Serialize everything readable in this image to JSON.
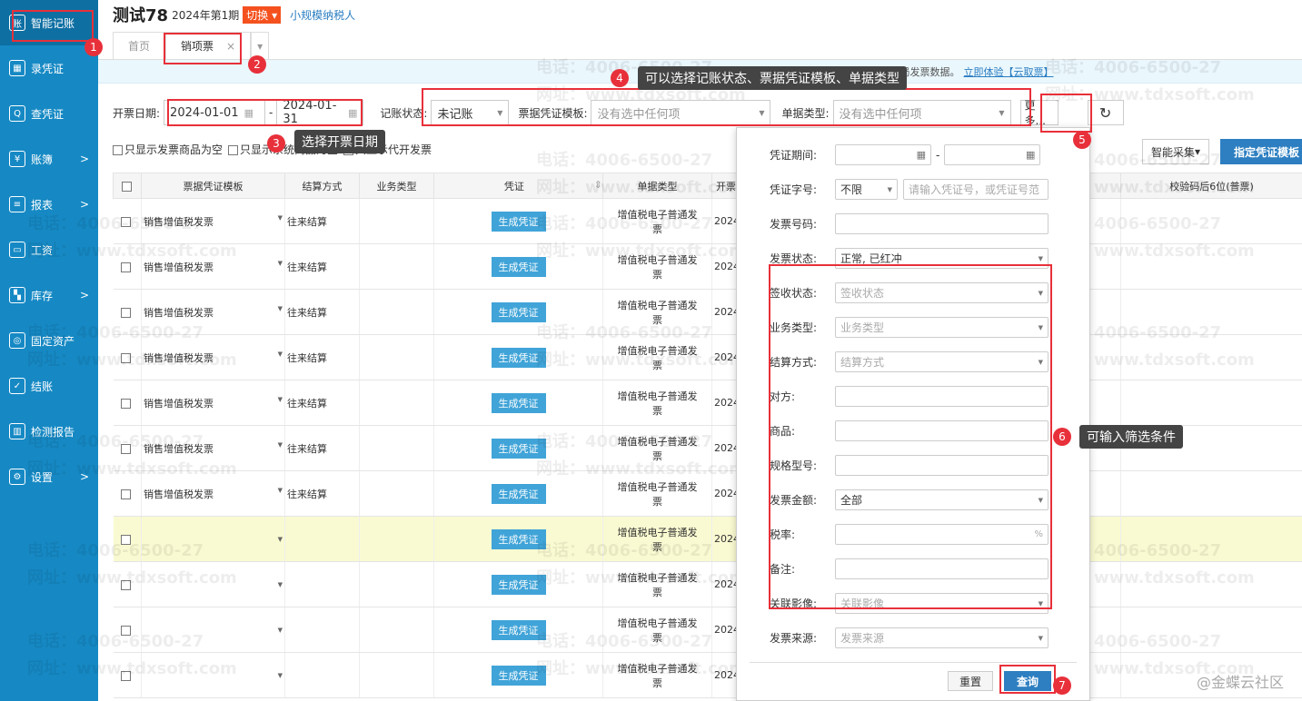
{
  "sidebar": {
    "items": [
      {
        "label": "智能记账",
        "icon": "smart-book-icon",
        "arrow": false
      },
      {
        "label": "录凭证",
        "icon": "calculator-icon",
        "arrow": false
      },
      {
        "label": "查凭证",
        "icon": "search-icon",
        "arrow": false
      },
      {
        "label": "账簿",
        "icon": "yen-icon",
        "arrow": true
      },
      {
        "label": "报表",
        "icon": "report-icon",
        "arrow": true
      },
      {
        "label": "工资",
        "icon": "salary-icon",
        "arrow": false
      },
      {
        "label": "库存",
        "icon": "grid-icon",
        "arrow": true
      },
      {
        "label": "固定资产",
        "icon": "asset-icon",
        "arrow": false
      },
      {
        "label": "结账",
        "icon": "check-icon",
        "arrow": false
      },
      {
        "label": "检测报告",
        "icon": "chart-icon",
        "arrow": false
      },
      {
        "label": "设置",
        "icon": "gear-icon",
        "arrow": true
      }
    ]
  },
  "header": {
    "title": "测试78",
    "period": "2024年第1期",
    "switch": "切换",
    "taxpayer": "小规模纳税人"
  },
  "tabs": [
    {
      "label": "首页"
    },
    {
      "label": "销项票",
      "close": "×"
    }
  ],
  "banner": {
    "text": "账无忧已开通【云取票】，可自动获取税局发票数据。",
    "link": "立即体验【云取票】"
  },
  "filters": {
    "date_label": "开票日期:",
    "date_from": "2024-01-01",
    "date_to": "2024-01-31",
    "status_label": "记账状态:",
    "status": "未记账",
    "template_label": "票据凭证模板:",
    "template": "没有选中任何项",
    "type_label": "单据类型:",
    "type": "没有选中任何项",
    "more": "更多...",
    "refresh": "↻"
  },
  "checks": [
    "只显示发票商品为空",
    "只显示系统商品为空",
    "只显示代开发票"
  ],
  "right_buttons": {
    "collect": "智能采集",
    "assign": "指定凭证模板"
  },
  "table": {
    "columns": [
      "票据凭证模板",
      "结算方式",
      "业务类型",
      "凭证",
      "单据类型",
      "开票",
      "校验码后6位(普票)"
    ],
    "rows": [
      {
        "template": "销售增值税发票",
        "settle": "往来结算",
        "btn": "生成凭证",
        "type": "增值税电子普通发票",
        "date": "2024"
      },
      {
        "template": "销售增值税发票",
        "settle": "往来结算",
        "btn": "生成凭证",
        "type": "增值税电子普通发票",
        "date": "2024"
      },
      {
        "template": "销售增值税发票",
        "settle": "往来结算",
        "btn": "生成凭证",
        "type": "增值税电子普通发票",
        "date": "2024"
      },
      {
        "template": "销售增值税发票",
        "settle": "往来结算",
        "btn": "生成凭证",
        "type": "增值税电子普通发票",
        "date": "2024"
      },
      {
        "template": "销售增值税发票",
        "settle": "往来结算",
        "btn": "生成凭证",
        "type": "增值税电子普通发票",
        "date": "2024"
      },
      {
        "template": "销售增值税发票",
        "settle": "往来结算",
        "btn": "生成凭证",
        "type": "增值税电子普通发票",
        "date": "2024"
      },
      {
        "template": "销售增值税发票",
        "settle": "往来结算",
        "btn": "生成凭证",
        "type": "增值税电子普通发票",
        "date": "2024"
      },
      {
        "template": "",
        "settle": "",
        "btn": "生成凭证",
        "type": "增值税电子普通发票",
        "date": "2024"
      },
      {
        "template": "",
        "settle": "",
        "btn": "生成凭证",
        "type": "增值税电子普通发票",
        "date": "2024"
      },
      {
        "template": "",
        "settle": "",
        "btn": "生成凭证",
        "type": "增值税电子普通发票",
        "date": "2024"
      },
      {
        "template": "",
        "settle": "",
        "btn": "生成凭证",
        "type": "增值税电子普通发票",
        "date": "2024"
      }
    ]
  },
  "popup": {
    "fields": [
      {
        "label": "凭证期间:",
        "kind": "range"
      },
      {
        "label": "凭证字号:",
        "kind": "voucher",
        "select": "不限",
        "placeholder": "请输入凭证号，或凭证号范"
      },
      {
        "label": "发票号码:",
        "value": ""
      },
      {
        "label": "发票状态:",
        "value": "正常, 已红冲",
        "select": true
      },
      {
        "label": "签收状态:",
        "placeholder": "签收状态",
        "select": true
      },
      {
        "label": "业务类型:",
        "placeholder": "业务类型",
        "select": true
      },
      {
        "label": "结算方式:",
        "placeholder": "结算方式",
        "select": true
      },
      {
        "label": "对方:",
        "value": ""
      },
      {
        "label": "商品:",
        "value": ""
      },
      {
        "label": "规格型号:",
        "value": ""
      },
      {
        "label": "发票金额:",
        "value": "全部",
        "select": true
      },
      {
        "label": "税率:",
        "suffix": "%"
      },
      {
        "label": "备注:",
        "value": ""
      },
      {
        "label": "关联影像:",
        "placeholder": "关联影像",
        "select": true
      },
      {
        "label": "发票来源:",
        "placeholder": "发票来源",
        "select": true
      }
    ],
    "reset": "重置",
    "query": "查询"
  },
  "annotations": {
    "tip3": "选择开票日期",
    "tip4": "可以选择记账状态、票据凭证模板、单据类型",
    "tip6": "可输入筛选条件",
    "nums": [
      "1",
      "2",
      "3",
      "4",
      "5",
      "6",
      "7"
    ]
  },
  "watermark": {
    "phone": "电话：4006-6500-27",
    "site": "网址：www.tdxsoft.com"
  },
  "corner": "@金蝶云社区",
  "colors": {
    "sidebar": "#1689c4",
    "accent": "#2d7fc1",
    "annotation": "#e8303a",
    "switch": "#f4511e"
  }
}
